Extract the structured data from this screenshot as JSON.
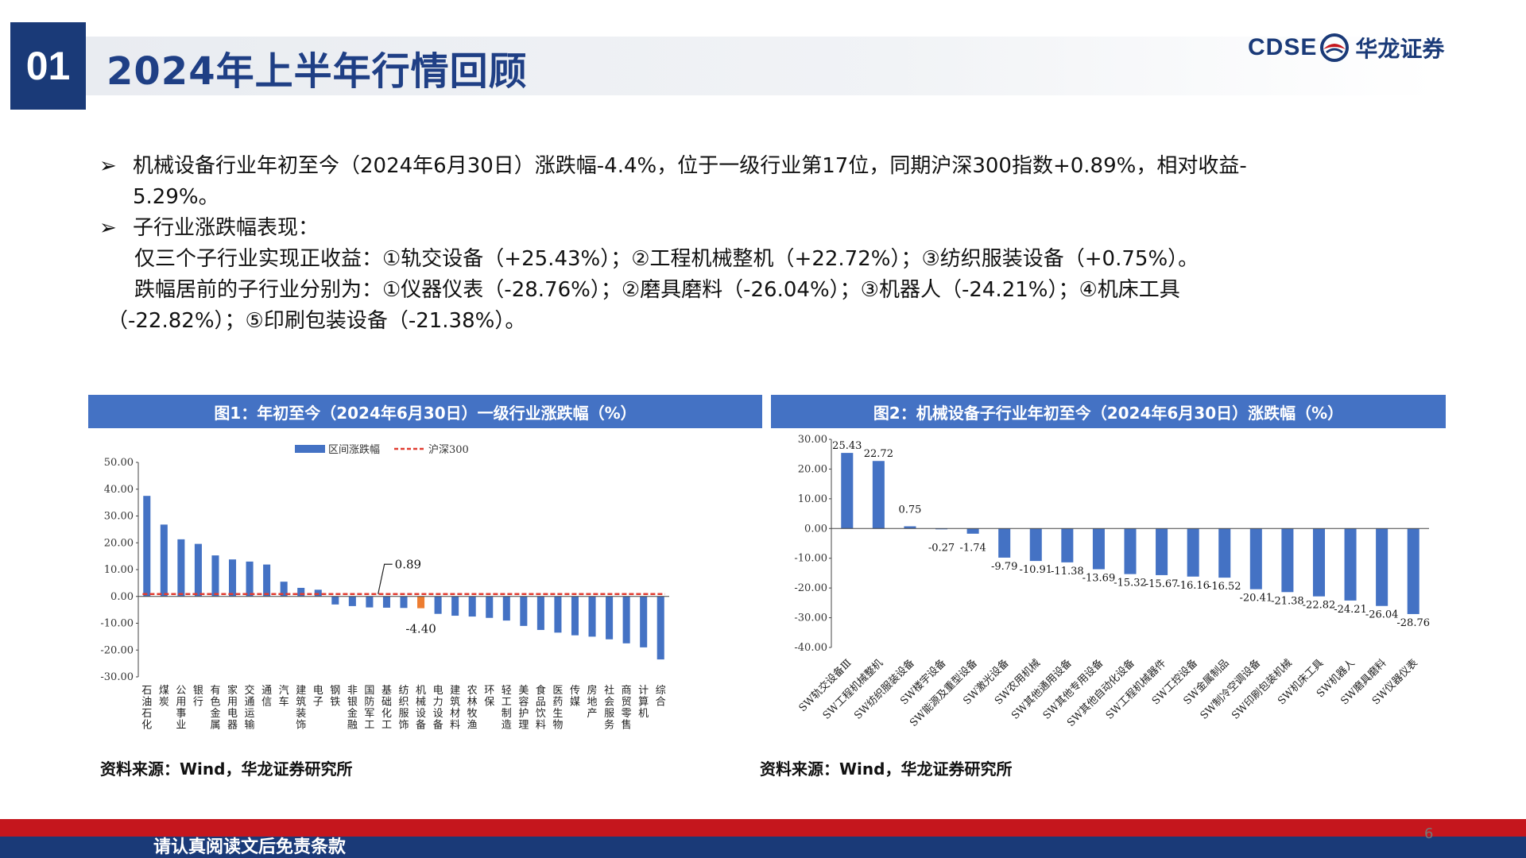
{
  "header": {
    "section_number": "01",
    "title": "2024年上半年行情回顾",
    "logo_en": "CDSE",
    "logo_cn": "华龙证券",
    "brand_color": "#1a3a78"
  },
  "bullets": {
    "b1_line1": "机械设备行业年初至今（2024年6月30日）涨跌幅-4.4%，位于一级行业第17位，同期沪深300指数+0.89%，相对收益-",
    "b1_line2": "5.29%。",
    "b2_title": "子行业涨跌幅表现：",
    "b2_line1": "仅三个子行业实现正收益：①轨交设备（+25.43%）；②工程机械整机（+22.72%）；③纺织服装设备（+0.75%）。",
    "b2_line2": "跌幅居前的子行业分别为：①仪器仪表（-28.76%）；②磨具磨料（-26.04%）；③机器人（-24.21%）；④机床工具",
    "b2_line3": "（-22.82%）；⑤印刷包装设备（-21.38%）。"
  },
  "charts": {
    "chart1_title": "图1：年初至今（2024年6月30日）一级行业涨跌幅（%）",
    "chart2_title": "图2：机械设备子行业年初至今（2024年6月30日）涨跌幅（%）",
    "source1": "资料来源：Wind，华龙证券研究所",
    "source2": "资料来源：Wind，华龙证券研究所"
  },
  "footer": {
    "disclaimer": "请认真阅读文后免责条款",
    "page_number": "6"
  },
  "chart_data": [
    {
      "type": "bar",
      "title": "图1：年初至今（2024年6月30日）一级行业涨跌幅（%）",
      "legend": {
        "bar": "区间涨跌幅",
        "line": "沪深300",
        "placement": "top"
      },
      "categories": [
        "石油石化",
        "煤炭",
        "公用事业",
        "银行",
        "有色金属",
        "家用电器",
        "交通运输",
        "通信",
        "汽车",
        "建筑装饰",
        "电子",
        "钢铁",
        "非银金融",
        "国防军工",
        "基础化工",
        "纺织服饰",
        "机械设备",
        "电力设备",
        "建筑材料",
        "农林牧渔",
        "环保",
        "轻工制造",
        "美容护理",
        "食品饮料",
        "医药生物",
        "传媒",
        "房地产",
        "社会服务",
        "商贸零售",
        "计算机",
        "综合"
      ],
      "series": [
        {
          "name": "区间涨跌幅",
          "values": [
            37.5,
            26.8,
            21.3,
            19.6,
            15.3,
            13.8,
            13.0,
            11.9,
            5.5,
            3.2,
            2.5,
            -3.0,
            -3.6,
            -4.1,
            -4.2,
            -4.3,
            -4.4,
            -6.5,
            -7.2,
            -7.5,
            -8.0,
            -9.0,
            -11.0,
            -12.5,
            -13.5,
            -14.5,
            -15.0,
            -16.0,
            -17.5,
            -19.0,
            -23.5
          ],
          "color": "#4472c4",
          "highlight_color": "#ed7d31",
          "highlight_category": "机械设备"
        },
        {
          "name": "沪深300",
          "value": 0.89,
          "color": "#e03c31",
          "style": "dashed"
        }
      ],
      "annotations": [
        "0.89",
        "-4.40"
      ],
      "y_ticks": [
        "50.00",
        "40.00",
        "30.00",
        "20.00",
        "10.00",
        "0.00",
        "-10.00",
        "-20.00",
        "-30.00"
      ],
      "ylim": [
        -30,
        50
      ],
      "grid": false
    },
    {
      "type": "bar",
      "title": "图2：机械设备子行业年初至今（2024年6月30日）涨跌幅（%）",
      "categories": [
        "SW轨交设备Ⅲ",
        "SW工程机械整机",
        "SW纺织服装设备",
        "SW楼宇设备",
        "SW能源及重型设备",
        "SW激光设备",
        "SW农用机械",
        "SW其他通用设备",
        "SW其他专用设备",
        "SW其他自动化设备",
        "SW工程机械器件",
        "SW工控设备",
        "SW金属制品",
        "SW制冷空调设备",
        "SW印刷包装机械",
        "SW机床工具",
        "SW机器人",
        "SW磨具磨料",
        "SW仪器仪表"
      ],
      "values": [
        25.43,
        22.72,
        0.75,
        -0.27,
        -1.74,
        -9.79,
        -10.91,
        -11.38,
        -13.69,
        -15.32,
        -15.67,
        -16.16,
        -16.52,
        -20.41,
        -21.38,
        -22.82,
        -24.21,
        -26.04,
        -28.76
      ],
      "labels": [
        "25.43",
        "22.72",
        "0.75",
        "-0.27",
        "-1.74",
        "-9.79",
        "-10.91",
        "-11.38",
        "-13.69",
        "-15.32",
        "-15.67",
        "-16.16",
        "-16.52",
        "-20.41",
        "-21.38",
        "-22.82",
        "-24.21",
        "-26.04",
        "-28.76"
      ],
      "y_ticks": [
        "30.00",
        "20.00",
        "10.00",
        "0.00",
        "-10.00",
        "-20.00",
        "-30.00",
        "-40.00"
      ],
      "ylim": [
        -40,
        30
      ],
      "color": "#4472c4",
      "grid": false
    }
  ]
}
